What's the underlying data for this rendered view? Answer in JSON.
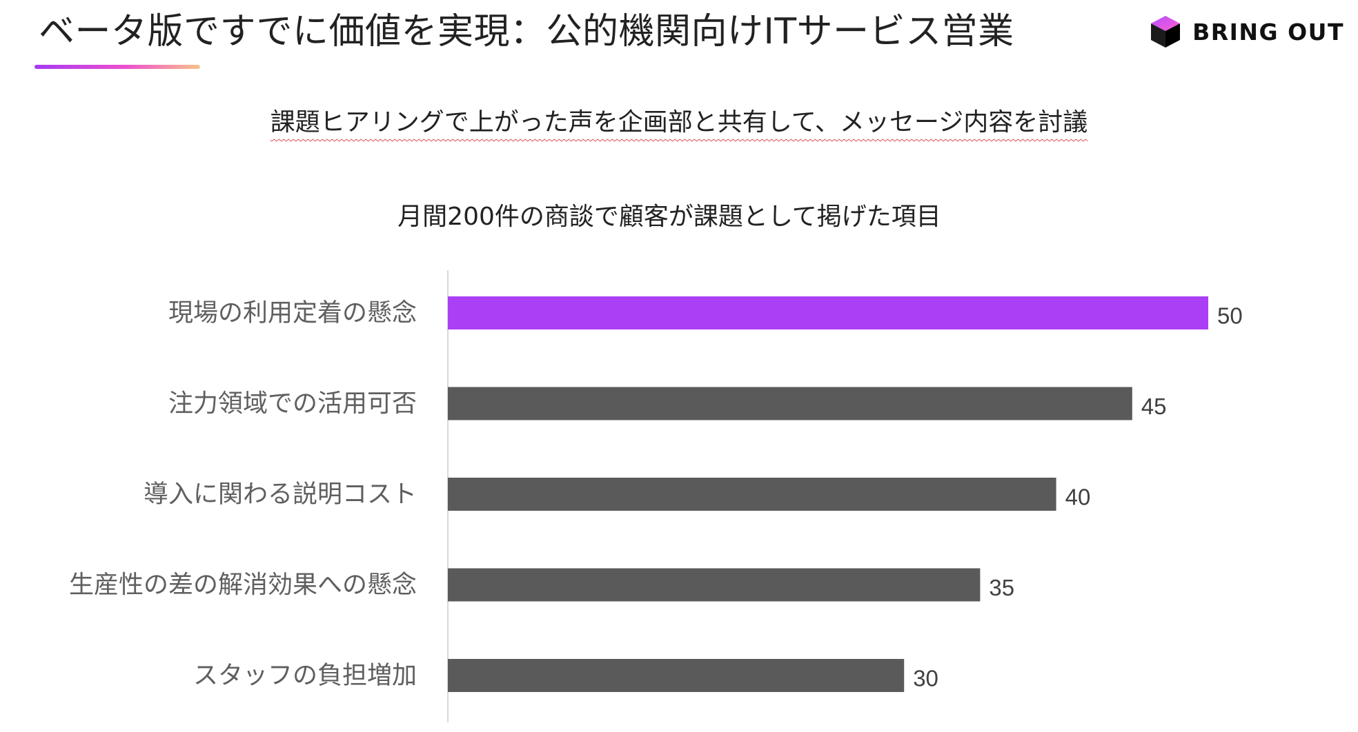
{
  "header": {
    "title": "ベータ版ですでに価値を実現：公的機関向けITサービス営業",
    "brand": "BRING OUT"
  },
  "subtitle": "課題ヒアリングで上がった声を企画部と共有して、メッセージ内容を討議",
  "chart_data": {
    "type": "bar",
    "orientation": "horizontal",
    "title": "月間200件の商談で顧客が課題として掲げた項目",
    "categories": [
      "現場の利用定着の懸念",
      "注力領域での活用可否",
      "導入に関わる説明コスト",
      "生産性の差の解消効果への懸念",
      "スタッフの負担増加"
    ],
    "values": [
      50,
      45,
      40,
      35,
      30
    ],
    "xlim": [
      0,
      50
    ],
    "highlight_index": 0,
    "colors": {
      "highlight": "#ab3ff6",
      "default": "#5a5a5a"
    },
    "grid": false,
    "legend": "none",
    "data_labels": true
  }
}
